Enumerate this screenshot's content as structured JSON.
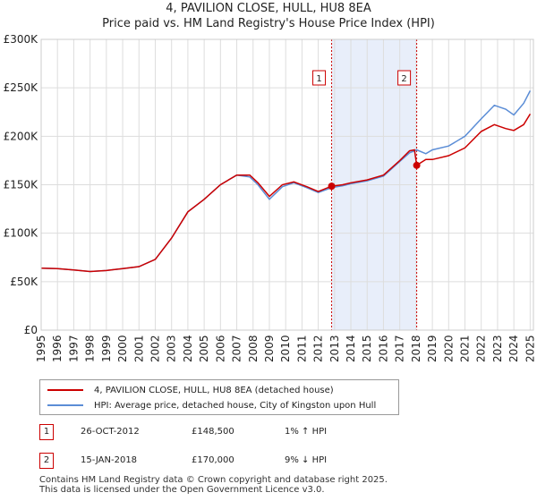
{
  "header": {
    "title": "4, PAVILION CLOSE, HULL, HU8 8EA",
    "subtitle": "Price paid vs. HM Land Registry's House Price Index (HPI)"
  },
  "colors": {
    "property": "#cc0000",
    "hpi": "#5b8dd6",
    "shade": "#e8eefa",
    "grid": "#dddddd"
  },
  "chart_data": {
    "type": "line",
    "title": "Price paid vs. HM Land Registry's House Price Index (HPI)",
    "xlabel": "",
    "ylabel": "",
    "xlim": [
      1995,
      2025.2
    ],
    "ylim": [
      0,
      300000
    ],
    "y_ticks": [
      0,
      50000,
      100000,
      150000,
      200000,
      250000,
      300000
    ],
    "y_tick_labels": [
      "£0",
      "£50K",
      "£100K",
      "£150K",
      "£200K",
      "£250K",
      "£300K"
    ],
    "x_ticks": [
      1995,
      1996,
      1997,
      1998,
      1999,
      2000,
      2001,
      2002,
      2003,
      2004,
      2005,
      2006,
      2007,
      2008,
      2009,
      2010,
      2011,
      2012,
      2013,
      2014,
      2015,
      2016,
      2017,
      2018,
      2019,
      2020,
      2021,
      2022,
      2023,
      2024,
      2025
    ],
    "shaded_region": [
      2012.82,
      2018.04
    ],
    "markers": [
      {
        "label": "1",
        "x": 2012.82,
        "y": 148500
      },
      {
        "label": "2",
        "x": 2018.04,
        "y": 170000
      }
    ],
    "series": [
      {
        "name": "HPI: Average price, detached house, City of Kingston upon Hull",
        "points": [
          [
            1995,
            64000
          ],
          [
            1996,
            63500
          ],
          [
            1997,
            62000
          ],
          [
            1998,
            60500
          ],
          [
            1999,
            61500
          ],
          [
            2000,
            63500
          ],
          [
            2001,
            65500
          ],
          [
            2002,
            73000
          ],
          [
            2003,
            95000
          ],
          [
            2004,
            122000
          ],
          [
            2005,
            135000
          ],
          [
            2006,
            150000
          ],
          [
            2007,
            160000
          ],
          [
            2007.8,
            158000
          ],
          [
            2008.3,
            150000
          ],
          [
            2009,
            135000
          ],
          [
            2009.8,
            148000
          ],
          [
            2010.5,
            152000
          ],
          [
            2011.3,
            147000
          ],
          [
            2012,
            142000
          ],
          [
            2012.82,
            147000
          ],
          [
            2013.5,
            149000
          ],
          [
            2014,
            151000
          ],
          [
            2015,
            154000
          ],
          [
            2016,
            159000
          ],
          [
            2017,
            174000
          ],
          [
            2017.6,
            183000
          ],
          [
            2018.04,
            186000
          ],
          [
            2018.6,
            182000
          ],
          [
            2019,
            186000
          ],
          [
            2020,
            190000
          ],
          [
            2021,
            200000
          ],
          [
            2022,
            218000
          ],
          [
            2022.8,
            232000
          ],
          [
            2023.5,
            228000
          ],
          [
            2024,
            222000
          ],
          [
            2024.6,
            234000
          ],
          [
            2025,
            247000
          ]
        ]
      },
      {
        "name": "4, PAVILION CLOSE, HULL, HU8 8EA (detached house)",
        "points": [
          [
            1995,
            64000
          ],
          [
            1996,
            63500
          ],
          [
            1997,
            62000
          ],
          [
            1998,
            60500
          ],
          [
            1999,
            61500
          ],
          [
            2000,
            63500
          ],
          [
            2001,
            65500
          ],
          [
            2002,
            73000
          ],
          [
            2003,
            95000
          ],
          [
            2004,
            122000
          ],
          [
            2005,
            135000
          ],
          [
            2006,
            150000
          ],
          [
            2007,
            160000
          ],
          [
            2007.8,
            160000
          ],
          [
            2008.3,
            152000
          ],
          [
            2009,
            138000
          ],
          [
            2009.8,
            150000
          ],
          [
            2010.5,
            153000
          ],
          [
            2011.3,
            148000
          ],
          [
            2012,
            143000
          ],
          [
            2012.82,
            148500
          ],
          [
            2013.5,
            150000
          ],
          [
            2014,
            152000
          ],
          [
            2015,
            155000
          ],
          [
            2016,
            160000
          ],
          [
            2017,
            175000
          ],
          [
            2017.6,
            185000
          ],
          [
            2017.9,
            186000
          ],
          [
            2018.04,
            170000
          ],
          [
            2018.6,
            176000
          ],
          [
            2019,
            176000
          ],
          [
            2020,
            180000
          ],
          [
            2021,
            188000
          ],
          [
            2022,
            205000
          ],
          [
            2022.8,
            212000
          ],
          [
            2023.5,
            208000
          ],
          [
            2024,
            206000
          ],
          [
            2024.6,
            212000
          ],
          [
            2025,
            223000
          ]
        ]
      }
    ]
  },
  "legend": {
    "property_label": "4, PAVILION CLOSE, HULL, HU8 8EA (detached house)",
    "hpi_label": "HPI: Average price, detached house, City of Kingston upon Hull"
  },
  "transactions": [
    {
      "marker": "1",
      "date": "26-OCT-2012",
      "price": "£148,500",
      "hpi_change": "1% ↑ HPI"
    },
    {
      "marker": "2",
      "date": "15-JAN-2018",
      "price": "£170,000",
      "hpi_change": "9% ↓ HPI"
    }
  ],
  "footer": {
    "line1": "Contains HM Land Registry data © Crown copyright and database right 2025.",
    "line2": "This data is licensed under the Open Government Licence v3.0."
  }
}
